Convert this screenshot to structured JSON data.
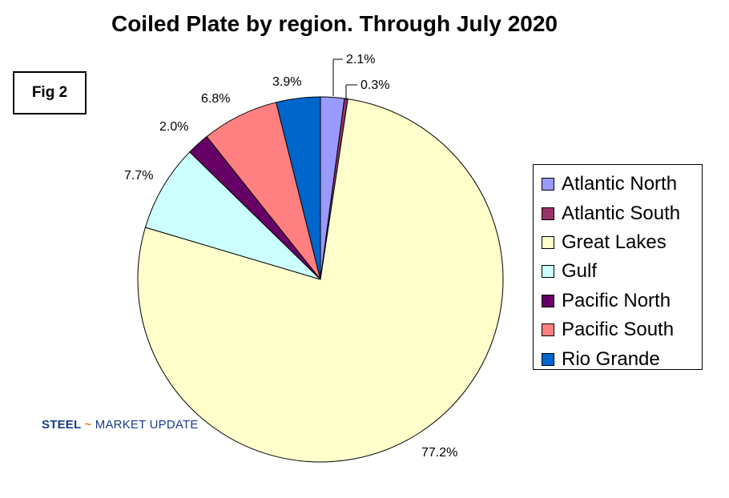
{
  "chart_data": {
    "type": "pie",
    "title": "Coiled Plate by region. Through July 2020",
    "categories": [
      "Atlantic North",
      "Atlantic South",
      "Great Lakes",
      "Gulf",
      "Pacific North",
      "Pacific South",
      "Rio Grande"
    ],
    "values": [
      2.1,
      0.3,
      77.2,
      7.7,
      2.0,
      6.8,
      3.9
    ],
    "value_labels": [
      "2.1%",
      "0.3%",
      "77.2%",
      "7.7%",
      "2.0%",
      "6.8%",
      "3.9%"
    ],
    "colors": [
      "#9999ff",
      "#993366",
      "#ffffcc",
      "#ccffff",
      "#660066",
      "#ff8080",
      "#0066cc"
    ],
    "start_angle": "12 o'clock",
    "direction": "clockwise",
    "legend_position": "right"
  },
  "figure_label": "Fig 2",
  "logo": {
    "word1": "STEEL",
    "word2": "MARKET",
    "word3": "UPDATE"
  }
}
